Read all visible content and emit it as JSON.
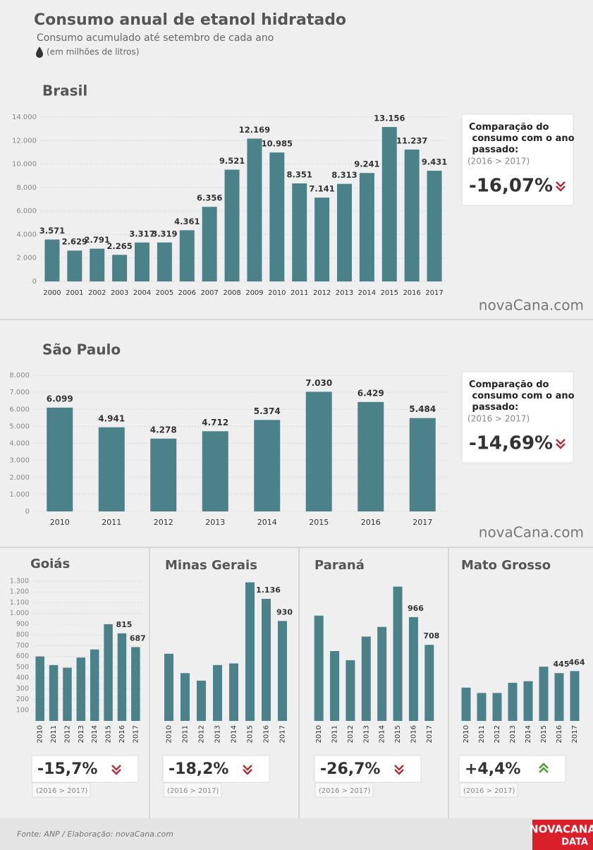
{
  "header": {
    "title": "Consumo anual de etanol hidratado",
    "subtitle": "Consumo acumulado até setembro de cada ano",
    "unit": "(em milhões de litros)"
  },
  "watermark": "novaCana.com",
  "footer": "Fonte: ANP / Elaboração: novaCana.com",
  "logo": {
    "line1": "NOVACANA",
    "line2": "DATA"
  },
  "chart_data": [
    {
      "type": "bar",
      "title": "Brasil",
      "color": "#4b8189",
      "grid": true,
      "categories": [
        "2000",
        "2001",
        "2002",
        "2003",
        "2004",
        "2005",
        "2006",
        "2007",
        "2008",
        "2009",
        "2010",
        "2011",
        "2012",
        "2013",
        "2014",
        "2015",
        "2016",
        "2017"
      ],
      "values": [
        3571,
        2629,
        2791,
        2265,
        3317,
        3319,
        4361,
        6356,
        9521,
        12169,
        10985,
        8351,
        7141,
        8313,
        9241,
        13156,
        11237,
        9431
      ],
      "value_labels": [
        "3.571",
        "2.629",
        "2.791",
        "2.265",
        "3.317",
        "3.319",
        "4.361",
        "6.356",
        "9.521",
        "12.169",
        "10.985",
        "8.351",
        "7.141",
        "8.313",
        "9.241",
        "13.156",
        "11.237",
        "9.431"
      ],
      "ylim": [
        0,
        14000
      ],
      "yticks": [
        0,
        {
          "value": 2000,
          "label": "2.000"
        },
        {
          "value": 4000,
          "label": "4.000"
        },
        {
          "value": 6000,
          "label": "6.000"
        },
        {
          "value": 8000,
          "label": "8.000"
        },
        {
          "value": 10000,
          "label": "10.000"
        },
        {
          "value": 12000,
          "label": "12.000"
        },
        {
          "value": 14000,
          "label": "14.000"
        }
      ],
      "comparison_label": "Comparação do consumo com o ano passado:",
      "period": "(2016 > 2017)",
      "change": {
        "value": -16.07,
        "label": "-16,07%"
      }
    },
    {
      "type": "bar",
      "title": "São Paulo",
      "color": "#4b8189",
      "grid": true,
      "categories": [
        "2010",
        "2011",
        "2012",
        "2013",
        "2014",
        "2015",
        "2016",
        "2017"
      ],
      "values": [
        6099,
        4941,
        4278,
        4712,
        5374,
        7030,
        6429,
        5484
      ],
      "value_labels": [
        "6.099",
        "4.941",
        "4.278",
        "4.712",
        "5.374",
        "7.030",
        "6.429",
        "5.484"
      ],
      "ylim": [
        0,
        8000
      ],
      "yticks": [
        0,
        {
          "value": 1000,
          "label": "1.000"
        },
        {
          "value": 2000,
          "label": "2.000"
        },
        {
          "value": 3000,
          "label": "3.000"
        },
        {
          "value": 4000,
          "label": "4.000"
        },
        {
          "value": 5000,
          "label": "5.000"
        },
        {
          "value": 6000,
          "label": "6.000"
        },
        {
          "value": 7000,
          "label": "7.000"
        },
        {
          "value": 8000,
          "label": "8.000"
        }
      ],
      "comparison_label": "Comparação do consumo com o ano passado:",
      "period": "(2016 > 2017)",
      "change": {
        "value": -14.69,
        "label": "-14,69%"
      }
    },
    {
      "type": "bar",
      "title": "Goiás",
      "color": "#4b8189",
      "grid": true,
      "categories": [
        "2010",
        "2011",
        "2012",
        "2013",
        "2014",
        "2015",
        "2016",
        "2017"
      ],
      "values": [
        600,
        520,
        495,
        590,
        665,
        900,
        815,
        687
      ],
      "value_labels": [
        null,
        null,
        null,
        null,
        null,
        null,
        "815",
        "687"
      ],
      "ylim": [
        0,
        1300
      ],
      "yticks": [
        100,
        200,
        300,
        400,
        500,
        600,
        700,
        800,
        900,
        {
          "value": 1000,
          "label": "1.000"
        },
        {
          "value": 1100,
          "label": "1.100"
        },
        {
          "value": 1200,
          "label": "1.200"
        },
        {
          "value": 1300,
          "label": "1.300"
        }
      ],
      "period": "(2016 > 2017)",
      "change": {
        "value": -15.7,
        "label": "-15,7%"
      }
    },
    {
      "type": "bar",
      "title": "Minas Gerais",
      "color": "#4b8189",
      "categories": [
        "2010",
        "2011",
        "2012",
        "2013",
        "2014",
        "2015",
        "2016",
        "2017"
      ],
      "values": [
        625,
        445,
        375,
        520,
        535,
        1290,
        1136,
        930
      ],
      "value_labels": [
        null,
        null,
        null,
        null,
        null,
        null,
        "1.136",
        "930"
      ],
      "ylim": [
        0,
        1300
      ],
      "period": "(2016 > 2017)",
      "change": {
        "value": -18.2,
        "label": "-18,2%"
      }
    },
    {
      "type": "bar",
      "title": "Paraná",
      "color": "#4b8189",
      "categories": [
        "2010",
        "2011",
        "2012",
        "2013",
        "2014",
        "2015",
        "2016",
        "2017"
      ],
      "values": [
        980,
        650,
        565,
        785,
        875,
        1250,
        966,
        708
      ],
      "value_labels": [
        null,
        null,
        null,
        null,
        null,
        null,
        "966",
        "708"
      ],
      "ylim": [
        0,
        1300
      ],
      "period": "(2016 > 2017)",
      "change": {
        "value": -26.7,
        "label": "-26,7%"
      }
    },
    {
      "type": "bar",
      "title": "Mato Grosso",
      "color": "#4b8189",
      "categories": [
        "2010",
        "2011",
        "2012",
        "2013",
        "2014",
        "2015",
        "2016",
        "2017"
      ],
      "values": [
        310,
        260,
        260,
        355,
        370,
        505,
        445,
        464
      ],
      "value_labels": [
        null,
        null,
        null,
        null,
        null,
        null,
        "445",
        "464"
      ],
      "ylim": [
        0,
        1300
      ],
      "period": "(2016 > 2017)",
      "change": {
        "value": 4.4,
        "label": "+4,4%"
      }
    }
  ]
}
